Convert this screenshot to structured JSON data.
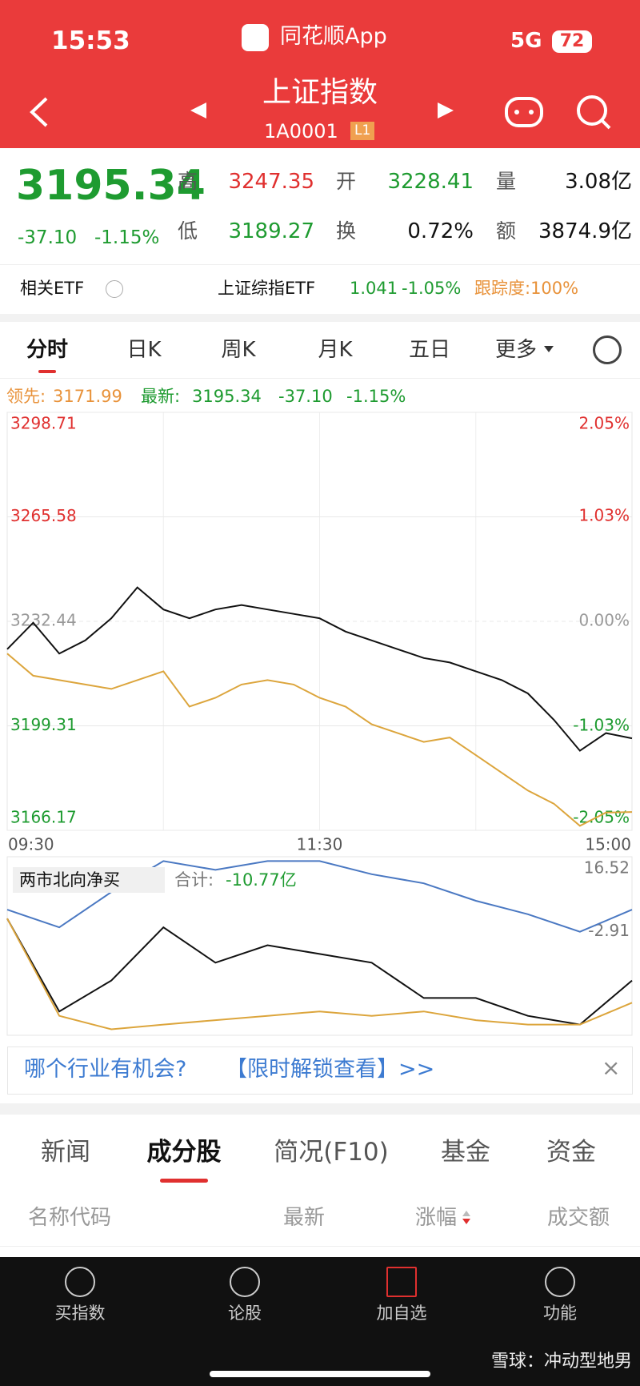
{
  "status_bar": {
    "time": "15:53",
    "app_name": "同花顺App",
    "network": "5G",
    "battery": "72"
  },
  "header": {
    "title": "上证指数",
    "code": "1A0001",
    "badge": "L1"
  },
  "quote": {
    "price": "3195.34",
    "change": "-37.10",
    "change_pct": "-1.15%",
    "fields": [
      {
        "label": "高",
        "value": "3247.35"
      },
      {
        "label": "开",
        "value": "3228.41"
      },
      {
        "label": "量",
        "value": "3.08亿"
      },
      {
        "label": "低",
        "value": "3189.27"
      },
      {
        "label": "换",
        "value": "0.72%"
      },
      {
        "label": "额",
        "value": "3874.9亿"
      }
    ]
  },
  "etf": {
    "label": "相关ETF",
    "name": "上证综指ETF",
    "price": "1.041",
    "change": "-1.05%",
    "tracking": "跟踪度:100%"
  },
  "chart_tabs": [
    "分时",
    "日K",
    "周K",
    "月K",
    "五日",
    "更多"
  ],
  "info": {
    "lead_label": "领先:",
    "lead_value": "3171.99",
    "latest_label": "最新:",
    "latest_value": "3195.34",
    "change": "-37.10",
    "change_pct": "-1.15%"
  },
  "chart_data": [
    {
      "type": "line",
      "x": [
        0,
        10,
        20,
        30,
        40,
        50,
        60,
        70,
        80,
        90,
        100,
        110,
        120,
        130,
        140,
        150,
        160,
        170,
        180,
        190,
        200,
        210,
        220,
        230,
        240
      ],
      "xlim": [
        0,
        240
      ],
      "xticks": [
        {
          "value": 0,
          "label": "09:30"
        },
        {
          "value": 120,
          "label": "11:30"
        },
        {
          "value": 240,
          "label": "15:00"
        }
      ],
      "ylim": [
        3166.17,
        3298.71
      ],
      "yticks": [
        3298.71,
        3265.58,
        3232.44,
        3199.31,
        3166.17
      ],
      "y2lim": [
        -2.05,
        2.05
      ],
      "y2ticks": [
        {
          "value": 2.05,
          "label": "2.05%"
        },
        {
          "value": 1.03,
          "label": "1.03%"
        },
        {
          "value": 0,
          "label": "0.00%"
        },
        {
          "value": -1.03,
          "label": "-1.03%"
        },
        {
          "value": -2.05,
          "label": "-2.05%"
        }
      ],
      "grid": true,
      "series": [
        {
          "color": "#111111",
          "values": [
            3223.6,
            3232.0,
            3222.2,
            3226.4,
            3233.4,
            3243.2,
            3236.2,
            3233.4,
            3236.2,
            3237.6,
            3236.2,
            3234.8,
            3233.4,
            3229.2,
            3226.4,
            3223.6,
            3220.8,
            3219.4,
            3216.6,
            3213.8,
            3209.6,
            3201.2,
            3191.4,
            3197.0,
            3195.34
          ]
        },
        {
          "color": "#dca53c",
          "values": [
            3222.2,
            3215.2,
            3213.8,
            3212.4,
            3211.0,
            3213.8,
            3216.6,
            3205.4,
            3208.2,
            3212.4,
            3213.8,
            3212.4,
            3208.2,
            3205.4,
            3199.8,
            3197.0,
            3194.2,
            3195.6,
            3190.0,
            3184.4,
            3178.8,
            3174.6,
            3167.6,
            3171.8,
            3171.99
          ]
        }
      ]
    },
    {
      "type": "line",
      "title": "两市北向净买",
      "total_label": "合计:",
      "total_value": "-10.77亿",
      "x": [
        0,
        20,
        40,
        60,
        80,
        100,
        120,
        140,
        160,
        180,
        200,
        220,
        240
      ],
      "xlim": [
        0,
        240
      ],
      "ylim": [
        -31.35,
        17.7
      ],
      "yticks": [
        16.52,
        -2.91
      ],
      "series": [
        {
          "color": "#4a78c2",
          "values": [
            3.15,
            -1.7,
            8.0,
            16.52,
            14.1,
            16.52,
            16.52,
            12.9,
            10.4,
            5.6,
            1.9,
            -2.91,
            3.15
          ]
        },
        {
          "color": "#111111",
          "values": [
            0.72,
            -24.8,
            -16.3,
            -1.7,
            -11.4,
            -6.6,
            -9.0,
            -11.4,
            -21.1,
            -21.1,
            -26.0,
            -28.4,
            -16.3
          ]
        },
        {
          "color": "#dca53c",
          "values": [
            0.72,
            -26.0,
            -29.7,
            -28.4,
            -27.2,
            -26.0,
            -24.8,
            -26.0,
            -24.8,
            -27.2,
            -28.4,
            -28.4,
            -22.4
          ]
        }
      ]
    }
  ],
  "banner": {
    "text": "哪个行业有机会?",
    "link": "【限时解锁查看】>>"
  },
  "section_tabs": [
    "新闻",
    "成分股",
    "简况(F10)",
    "基金",
    "资金"
  ],
  "table_header": [
    "名称代码",
    "最新",
    "涨幅",
    "成交额"
  ],
  "nav": [
    "买指数",
    "论股",
    "加自选",
    "功能"
  ],
  "watermark": "雪球：冲动型地男"
}
